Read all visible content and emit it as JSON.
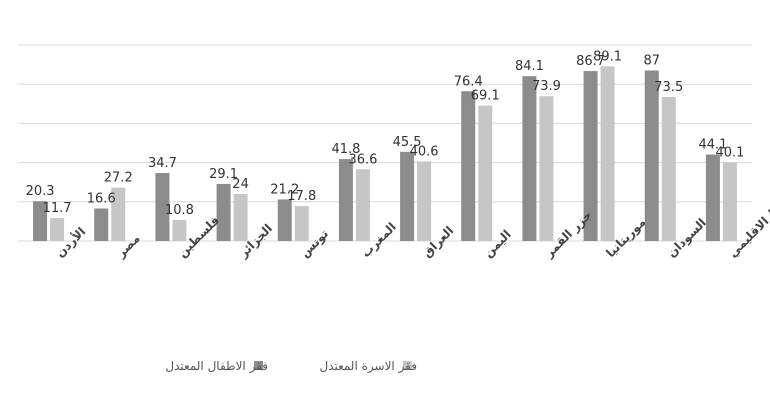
{
  "chart_data": {
    "type": "bar",
    "categories": [
      "الأردن",
      "مصر",
      "فلسطين",
      "الجزائر",
      "تونس",
      "المغرب",
      "العراق",
      "اليمن",
      "جزر القمر",
      "موريتانيا",
      "السودان",
      "المتوسط الاقليمي"
    ],
    "series": [
      {
        "name": "فقر الاطفال المعتدل",
        "color": "#8c8c8c",
        "values": [
          20.3,
          16.6,
          34.7,
          29.1,
          21.2,
          41.8,
          45.5,
          76.4,
          84.1,
          86.7,
          87,
          44.1
        ]
      },
      {
        "name": "فقر الاسرة المعتدل",
        "color": "#c6c6c6",
        "values": [
          11.7,
          27.2,
          10.8,
          24,
          17.8,
          36.6,
          40.6,
          69.1,
          73.9,
          89.1,
          73.5,
          40.1
        ]
      }
    ],
    "title": "",
    "xlabel": "",
    "ylabel": "",
    "ylim": [
      0,
      100
    ],
    "grid": true,
    "legend": "bottom-center"
  }
}
